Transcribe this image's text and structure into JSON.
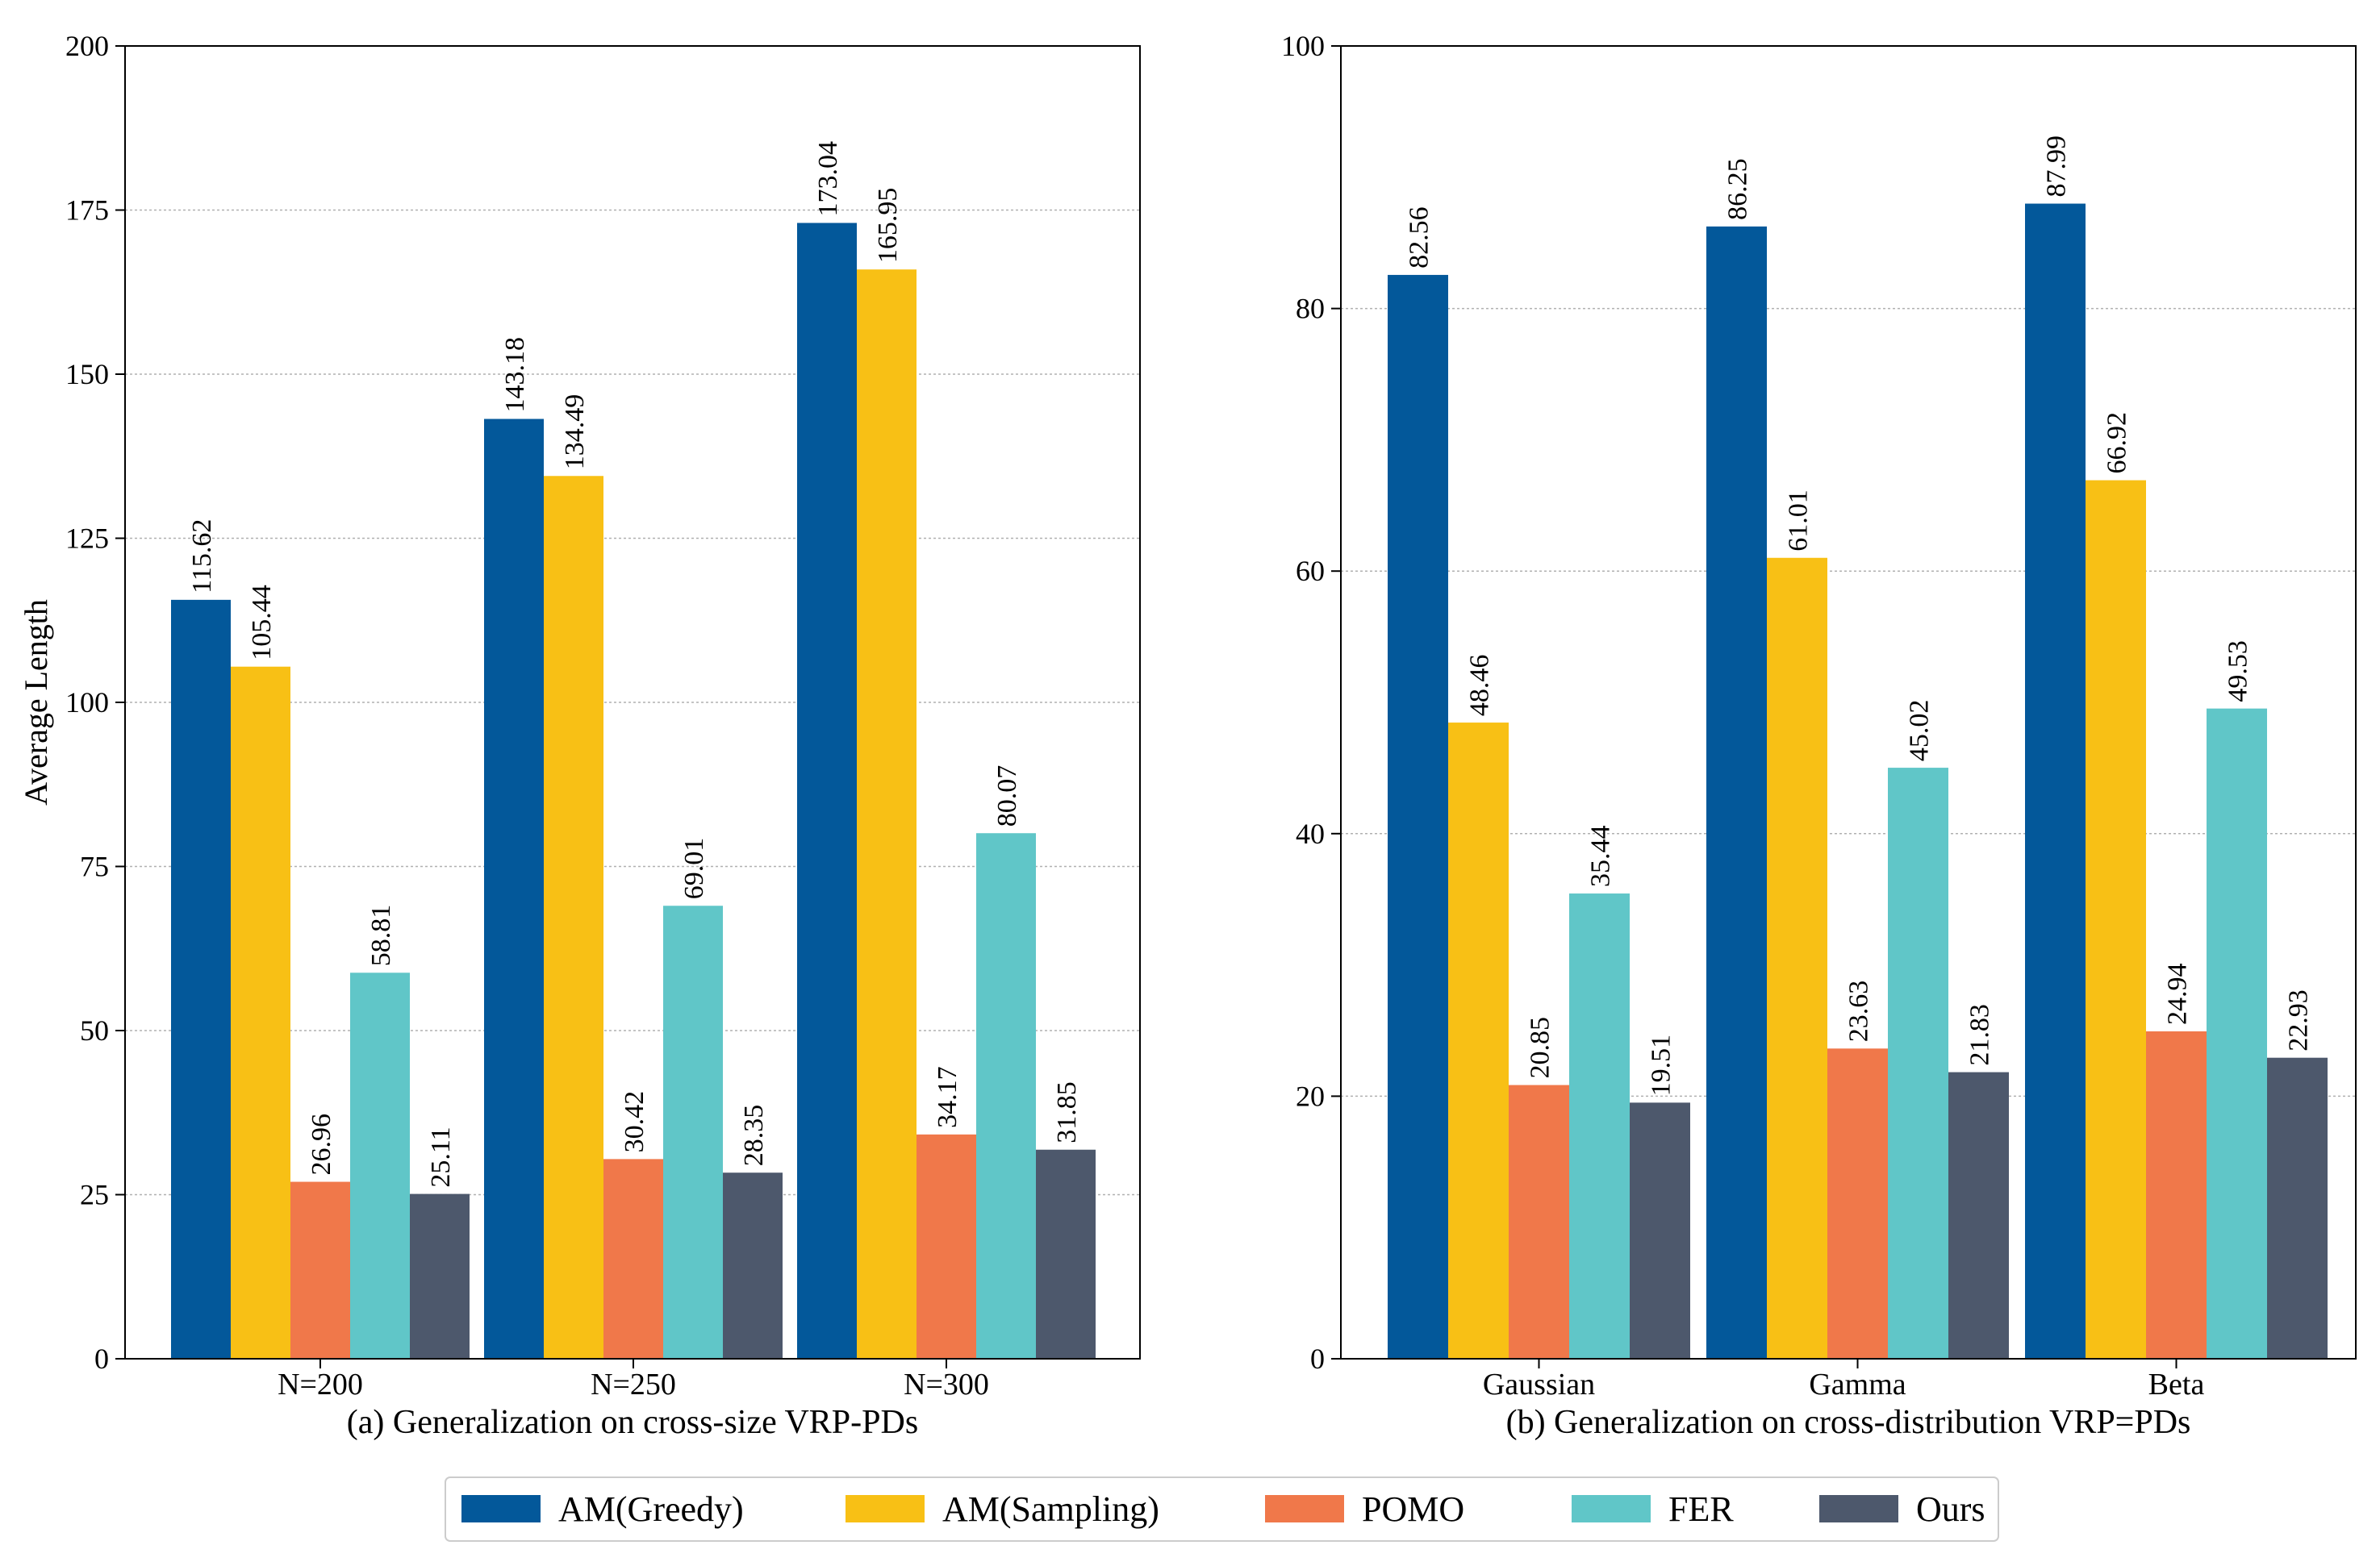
{
  "series_colors": [
    "#03589a",
    "#f8c015",
    "#f0784a",
    "#60c6c8",
    "#4d586c"
  ],
  "legend": {
    "items": [
      "AM(Greedy)",
      "AM(Sampling)",
      "POMO",
      "FER",
      "Ours"
    ]
  },
  "chart_data": [
    {
      "type": "bar",
      "title": "(a) Generalization on cross-size VRP-PDs",
      "xlabel": "",
      "ylabel": "Average Length",
      "ylim": [
        0,
        200
      ],
      "yticks": [
        0,
        25,
        50,
        75,
        100,
        125,
        150,
        175,
        200
      ],
      "grid": true,
      "categories": [
        "N=200",
        "N=250",
        "N=300"
      ],
      "series": [
        {
          "name": "AM(Greedy)",
          "values": [
            115.62,
            143.18,
            173.04
          ],
          "labels": [
            "115.62",
            "143.18",
            "173.04"
          ]
        },
        {
          "name": "AM(Sampling)",
          "values": [
            105.44,
            134.49,
            165.95
          ],
          "labels": [
            "105.44",
            "134.49",
            "165.95"
          ]
        },
        {
          "name": "POMO",
          "values": [
            26.96,
            30.42,
            34.17
          ],
          "labels": [
            "26.96",
            "30.42",
            "34.17"
          ]
        },
        {
          "name": "FER",
          "values": [
            58.81,
            69.01,
            80.07
          ],
          "labels": [
            "58.81",
            "69.01",
            "80.07"
          ]
        },
        {
          "name": "Ours",
          "values": [
            25.11,
            28.35,
            31.85
          ],
          "labels": [
            "25.11",
            "28.35",
            "31.85"
          ]
        }
      ]
    },
    {
      "type": "bar",
      "title": "(b) Generalization on cross-distribution VRP=PDs",
      "xlabel": "",
      "ylabel": "",
      "ylim": [
        0,
        100
      ],
      "yticks": [
        0,
        20,
        40,
        60,
        80,
        100
      ],
      "grid": true,
      "categories": [
        "Gaussian",
        "Gamma",
        "Beta"
      ],
      "series": [
        {
          "name": "AM(Greedy)",
          "values": [
            82.56,
            86.25,
            87.99
          ],
          "labels": [
            "82.56",
            "86.25",
            "87.99"
          ]
        },
        {
          "name": "AM(Sampling)",
          "values": [
            48.46,
            61.01,
            66.92
          ],
          "labels": [
            "48.46",
            "61.01",
            "66.92"
          ]
        },
        {
          "name": "POMO",
          "values": [
            20.85,
            23.63,
            24.94
          ],
          "labels": [
            "20.85",
            "23.63",
            "24.94"
          ]
        },
        {
          "name": "FER",
          "values": [
            35.44,
            45.02,
            49.53
          ],
          "labels": [
            "35.44",
            "45.02",
            "49.53"
          ]
        },
        {
          "name": "Ours",
          "values": [
            19.51,
            21.83,
            22.93
          ],
          "labels": [
            "19.51",
            "21.83",
            "22.93"
          ]
        }
      ]
    }
  ]
}
